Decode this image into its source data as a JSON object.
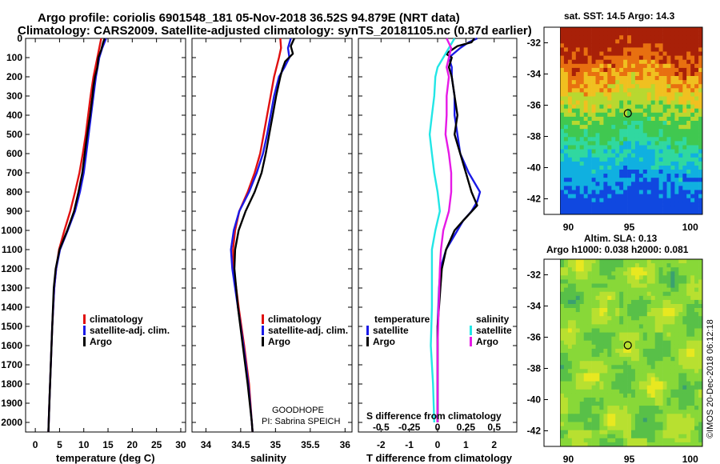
{
  "header": {
    "line1": "Argo profile: coriolis 6901548_181 05-Nov-2018 36.52S 94.879E (NRT data)",
    "line2": "Climatology: CARS2009. Satellite-adjusted climatology: synTS_20181105.nc (0.87d earlier)"
  },
  "colors": {
    "climatology": "#e01010",
    "satellite": "#1a1ae6",
    "argo": "#000000",
    "sat_salinity": "#22e6e6",
    "argo_salinity": "#e61ae6"
  },
  "footer": {
    "project": "GOODHOPE",
    "pi": "PI: Sabrina SPEICH",
    "credit": "©IMOS 20-Dec-2018 06:12:18"
  },
  "legend_temp": {
    "clim": "climatology",
    "sat": "satellite-adj. clim.",
    "argo": "Argo"
  },
  "legend_sal": {
    "clim": "climatology",
    "sat": "satellite-adj. clim.",
    "argo": "Argo"
  },
  "legend_diff": {
    "temp_head": "temperature",
    "sal_head": "salinity",
    "sat": "satellite",
    "argo": "Argo",
    "sal_sat": "satellite",
    "sal_argo": "Argo",
    "s_axis_label": "S difference from climatology"
  },
  "maps": {
    "sst_title": "sat. SST: 14.5 Argo: 14.3",
    "sla_title1": "Altim. SLA: 0.13",
    "sla_title2": "Argo h1000: 0.038 h2000: 0.081",
    "lat_ticks": [
      "-32",
      "-34",
      "-36",
      "-38",
      "-40",
      "-42"
    ],
    "lon_ticks": [
      "90",
      "95",
      "100"
    ],
    "argo_position": {
      "lon": 94.879,
      "lat": -36.52
    }
  },
  "chart_data": [
    {
      "type": "line",
      "title": "",
      "xlabel": "temperature (deg C)",
      "ylabel": "",
      "xlim": [
        -2,
        31
      ],
      "ylim": [
        2050,
        0
      ],
      "xticks": [
        "0",
        "5",
        "10",
        "15",
        "20",
        "25",
        "30"
      ],
      "yticks": [
        "0",
        "100",
        "200",
        "300",
        "400",
        "500",
        "600",
        "700",
        "800",
        "900",
        "1000",
        "1100",
        "1200",
        "1300",
        "1400",
        "1500",
        "1600",
        "1700",
        "1800",
        "1900",
        "2000"
      ],
      "series": [
        {
          "name": "climatology",
          "color": "#e01010",
          "depth": [
            0,
            50,
            100,
            200,
            300,
            400,
            500,
            600,
            700,
            800,
            900,
            1000,
            1100,
            1200,
            1300,
            1500,
            1700,
            1900,
            2050
          ],
          "x": [
            13.6,
            13.2,
            12.8,
            12.0,
            11.4,
            10.9,
            10.4,
            9.8,
            9.1,
            8.2,
            7.2,
            6.0,
            4.9,
            4.3,
            3.9,
            3.5,
            3.2,
            2.9,
            2.7
          ]
        },
        {
          "name": "satellite-adj. clim.",
          "color": "#1a1ae6",
          "depth": [
            0,
            50,
            100,
            200,
            300,
            400,
            500,
            600,
            700,
            800,
            900,
            1000,
            1100,
            1200,
            1300,
            1500,
            1700,
            1900,
            2050
          ],
          "x": [
            14.6,
            13.8,
            13.2,
            12.5,
            12.0,
            11.5,
            11.0,
            10.5,
            10.0,
            9.2,
            8.2,
            6.7,
            5.1,
            4.3,
            3.9,
            3.5,
            3.2,
            2.9,
            2.7
          ]
        },
        {
          "name": "Argo",
          "color": "#000000",
          "depth": [
            0,
            20,
            60,
            100,
            150,
            200,
            250,
            300,
            400,
            500,
            600,
            700,
            800,
            900,
            1000,
            1100,
            1200,
            1300,
            1500,
            1700,
            1900,
            2050
          ],
          "x": [
            14.3,
            14.0,
            13.6,
            13.0,
            12.8,
            12.3,
            12.0,
            11.8,
            11.3,
            10.7,
            10.2,
            9.7,
            8.9,
            8.0,
            6.6,
            5.0,
            4.2,
            3.8,
            3.5,
            3.2,
            2.9,
            2.7
          ]
        }
      ]
    },
    {
      "type": "line",
      "title": "",
      "xlabel": "salinity",
      "ylabel": "",
      "xlim": [
        33.8,
        36.1
      ],
      "ylim": [
        2050,
        0
      ],
      "xticks": [
        "34",
        "34.5",
        "35",
        "35.5",
        "36"
      ],
      "series": [
        {
          "name": "climatology",
          "color": "#e01010",
          "depth": [
            0,
            50,
            100,
            200,
            300,
            400,
            500,
            600,
            700,
            800,
            900,
            1000,
            1100,
            1200,
            1400,
            1600,
            1800,
            2000,
            2050
          ],
          "x": [
            35.07,
            35.08,
            35.05,
            34.98,
            34.93,
            34.88,
            34.83,
            34.78,
            34.7,
            34.6,
            34.48,
            34.42,
            34.39,
            34.4,
            34.47,
            34.55,
            34.62,
            34.66,
            34.67
          ]
        },
        {
          "name": "satellite-adj. clim.",
          "color": "#1a1ae6",
          "depth": [
            0,
            50,
            100,
            150,
            200,
            300,
            400,
            500,
            600,
            700,
            800,
            900,
            1000,
            1100,
            1200,
            1400,
            1600,
            1800,
            2000,
            2050
          ],
          "x": [
            35.22,
            35.18,
            35.2,
            35.13,
            35.05,
            34.98,
            34.93,
            34.88,
            34.82,
            34.73,
            34.62,
            34.48,
            34.4,
            34.36,
            34.38,
            34.46,
            34.54,
            34.61,
            34.66,
            34.67
          ]
        },
        {
          "name": "Argo",
          "color": "#000000",
          "depth": [
            0,
            40,
            80,
            120,
            160,
            200,
            300,
            400,
            500,
            600,
            700,
            800,
            900,
            1000,
            1100,
            1200,
            1400,
            1600,
            1800,
            2000,
            2050
          ],
          "x": [
            35.27,
            35.22,
            35.25,
            35.14,
            35.1,
            35.07,
            35.01,
            34.96,
            34.91,
            34.86,
            34.8,
            34.7,
            34.57,
            34.47,
            34.42,
            34.41,
            34.46,
            34.53,
            34.6,
            34.66,
            34.67
          ]
        }
      ]
    },
    {
      "type": "line",
      "title": "",
      "xlabel": "T difference from climatology",
      "x2label": "S difference from climatology",
      "xlim": [
        -2.8,
        2.8
      ],
      "ylim": [
        2050,
        0
      ],
      "xticks": [
        "-2",
        "-1",
        "0",
        "1",
        "2"
      ],
      "x2ticks": [
        "-0.5",
        "-0.25",
        "0",
        "0.25",
        "0.5"
      ],
      "x2lim": [
        -0.7,
        0.7
      ],
      "series": [
        {
          "name": "temperature satellite",
          "axis": "T",
          "color": "#1a1ae6",
          "depth": [
            0,
            20,
            50,
            100,
            150,
            200,
            300,
            400,
            500,
            600,
            700,
            800,
            850,
            900,
            950,
            1000,
            1100,
            1200,
            1300,
            1500,
            1700,
            1900,
            2000
          ],
          "x": [
            1.4,
            1.1,
            0.8,
            0.4,
            0.5,
            0.5,
            0.6,
            0.6,
            0.7,
            0.8,
            1.1,
            1.5,
            1.4,
            1.2,
            0.9,
            0.7,
            0.3,
            0.1,
            0.05,
            0.0,
            0.0,
            0.0,
            0.0
          ]
        },
        {
          "name": "temperature Argo",
          "axis": "T",
          "color": "#000000",
          "depth": [
            0,
            20,
            40,
            80,
            100,
            150,
            200,
            300,
            400,
            500,
            600,
            700,
            800,
            870,
            950,
            1000,
            1100,
            1200,
            1300,
            1500,
            1700,
            1900,
            2000
          ],
          "x": [
            1.3,
            1.2,
            0.7,
            0.3,
            0.5,
            0.4,
            0.5,
            0.6,
            0.7,
            0.6,
            0.8,
            1.0,
            1.2,
            1.4,
            0.9,
            0.6,
            0.3,
            0.15,
            0.1,
            0.0,
            0.0,
            0.0,
            0.0
          ]
        },
        {
          "name": "salinity satellite",
          "axis": "S",
          "color": "#22e6e6",
          "depth": [
            0,
            50,
            100,
            150,
            200,
            300,
            400,
            500,
            600,
            700,
            800,
            900,
            1000,
            1100,
            1200,
            1400,
            1600,
            1800,
            2000
          ],
          "x": [
            0.15,
            0.1,
            0.05,
            0.0,
            -0.02,
            -0.03,
            -0.05,
            -0.07,
            -0.05,
            -0.03,
            0.0,
            0.02,
            -0.02,
            -0.05,
            -0.05,
            -0.05,
            -0.06,
            -0.04,
            -0.03
          ]
        },
        {
          "name": "salinity Argo",
          "axis": "S",
          "color": "#e61ae6",
          "depth": [
            0,
            50,
            100,
            150,
            200,
            300,
            400,
            500,
            600,
            700,
            800,
            900,
            1000,
            1100,
            1200,
            1400,
            1600,
            1800,
            2000
          ],
          "x": [
            0.08,
            0.12,
            0.1,
            0.08,
            0.1,
            0.08,
            0.08,
            0.07,
            0.1,
            0.12,
            0.12,
            0.1,
            0.05,
            0.03,
            0.02,
            0.01,
            0.0,
            0.0,
            0.0
          ]
        }
      ]
    }
  ]
}
